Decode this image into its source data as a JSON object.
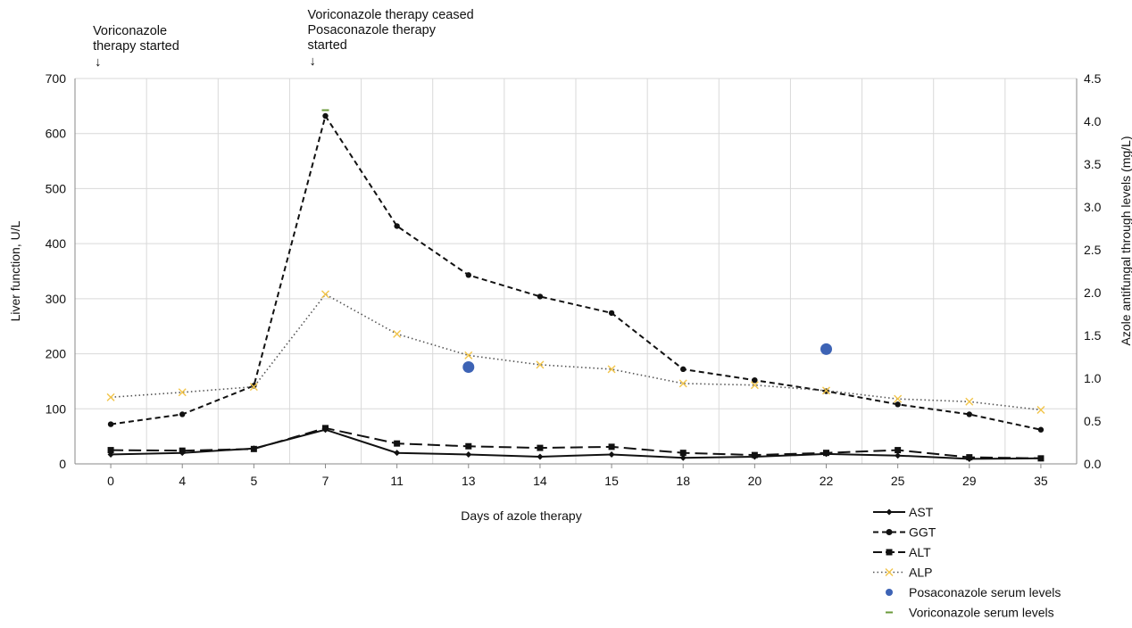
{
  "chart_data": {
    "type": "line",
    "categories": [
      "0",
      "4",
      "5",
      "7",
      "11",
      "13",
      "14",
      "15",
      "18",
      "20",
      "22",
      "25",
      "29",
      "35"
    ],
    "xlabel": "Days of azole therapy",
    "ylabel": "Liver function, U/L",
    "y2label": "Azole antifungal through levels (mg/L)",
    "ylim": [
      0,
      700
    ],
    "yticks": [
      "0",
      "100",
      "200",
      "300",
      "400",
      "500",
      "600",
      "700"
    ],
    "y2lim": [
      0,
      4.5
    ],
    "y2ticks": [
      "0.0",
      "0.5",
      "1.0",
      "1.5",
      "2.0",
      "2.5",
      "3.0",
      "3.5",
      "4.0",
      "4.5"
    ],
    "grid": true,
    "legend_position": "bottom-right",
    "series": [
      {
        "name": "AST",
        "axis": "left",
        "color": "#111111",
        "style": "solid",
        "marker": "diamond",
        "values": [
          17,
          20,
          28,
          62,
          20,
          17,
          13,
          17,
          11,
          13,
          18,
          15,
          9,
          10
        ]
      },
      {
        "name": "GGT",
        "axis": "left",
        "color": "#111111",
        "style": "dashed",
        "marker": "circle",
        "values": [
          72,
          90,
          142,
          632,
          432,
          343,
          304,
          274,
          172,
          152,
          132,
          108,
          90,
          62
        ]
      },
      {
        "name": "ALT",
        "axis": "left",
        "color": "#111111",
        "style": "longdash",
        "marker": "square",
        "values": [
          25,
          24,
          27,
          65,
          37,
          32,
          29,
          31,
          20,
          16,
          20,
          25,
          12,
          10
        ]
      },
      {
        "name": "ALP",
        "axis": "left",
        "color": "#555555",
        "style": "dotted",
        "marker": "x",
        "marker_color": "#f2c54b",
        "values": [
          121,
          130,
          140,
          308,
          236,
          197,
          180,
          172,
          146,
          143,
          133,
          118,
          113,
          98
        ]
      },
      {
        "name": "Posaconazole serum levels",
        "axis": "right",
        "color": "#3d63b5",
        "marker": "circle",
        "points": [
          {
            "x": "13",
            "y": 1.13
          },
          {
            "x": "22",
            "y": 1.34
          }
        ]
      },
      {
        "name": "Voriconazole serum levels",
        "axis": "right",
        "color": "#6a9a3a",
        "marker": "dash",
        "points": [
          {
            "x": "7",
            "y": 4.13
          }
        ]
      }
    ],
    "annotations": [
      {
        "id": "a1",
        "lines": [
          "Voriconazole",
          "therapy started"
        ],
        "x": "0",
        "arrow": "↓"
      },
      {
        "id": "a2",
        "lines": [
          "Voriconazole therapy ceased",
          "Posaconazole therapy",
          "started"
        ],
        "x": "7",
        "arrow": "↓"
      }
    ]
  }
}
